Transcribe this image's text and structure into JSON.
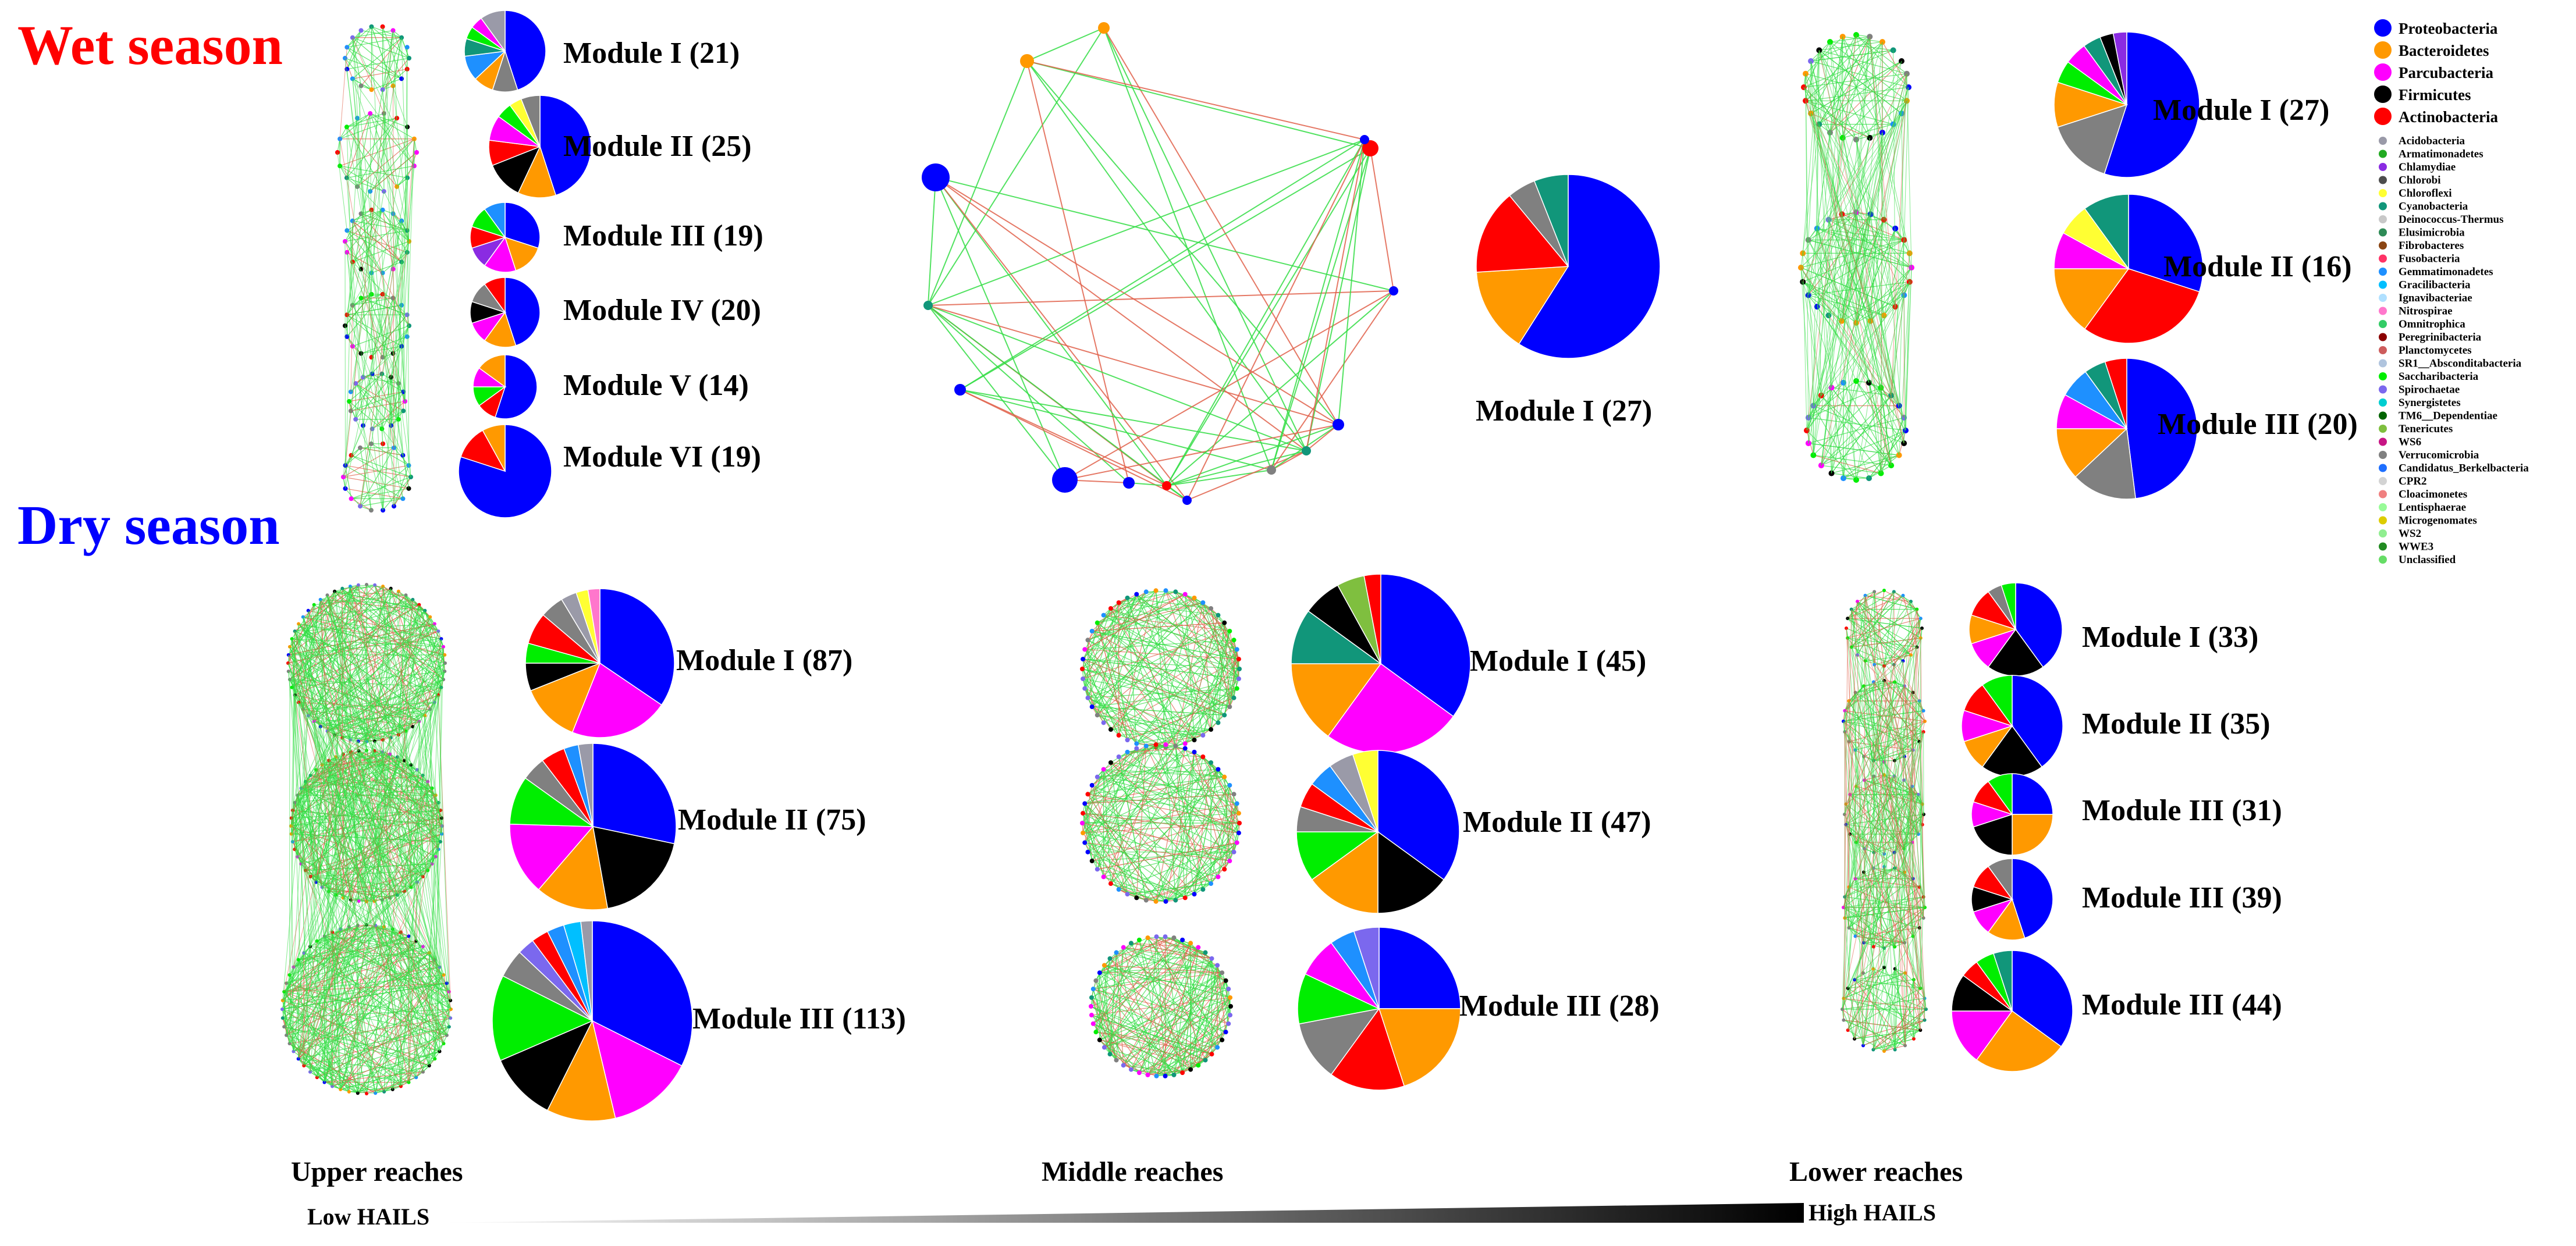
{
  "seasons": {
    "wet": {
      "label": "Wet season",
      "color": "#ff0000"
    },
    "dry": {
      "label": "Dry season",
      "color": "#0000ff"
    }
  },
  "reaches": [
    "Upper reaches",
    "Middle reaches",
    "Lower reaches"
  ],
  "hails": {
    "low": "Low HAILS",
    "high": "High HAILS"
  },
  "legend": [
    {
      "name": "Proteobacteria",
      "color": "#0000ff",
      "major": true
    },
    {
      "name": "Bacteroidetes",
      "color": "#ff9900",
      "major": true
    },
    {
      "name": "Parcubacteria",
      "color": "#ff00ff",
      "major": true
    },
    {
      "name": "Firmicutes",
      "color": "#000000",
      "major": true
    },
    {
      "name": "Actinobacteria",
      "color": "#ff0000",
      "major": true
    },
    {
      "name": "Acidobacteria",
      "color": "#9a9aa8"
    },
    {
      "name": "Armatimonadetes",
      "color": "#22aa22"
    },
    {
      "name": "Chlamydiae",
      "color": "#8a2be2"
    },
    {
      "name": "Chlorobi",
      "color": "#4d4d4d"
    },
    {
      "name": "Chloroflexi",
      "color": "#ffff33"
    },
    {
      "name": "Cyanobacteria",
      "color": "#11967a"
    },
    {
      "name": "Deinococcus-Thermus",
      "color": "#c8c8c8"
    },
    {
      "name": "Elusimicrobia",
      "color": "#2e8b57"
    },
    {
      "name": "Fibrobacteres",
      "color": "#8b4513"
    },
    {
      "name": "Fusobacteria",
      "color": "#ff3366"
    },
    {
      "name": "Gemmatimonadetes",
      "color": "#1e90ff"
    },
    {
      "name": "Gracilibacteria",
      "color": "#00bfff"
    },
    {
      "name": "Ignavibacteriae",
      "color": "#b0e0ff"
    },
    {
      "name": "Nitrospirae",
      "color": "#ff77cc"
    },
    {
      "name": "Omnitrophica",
      "color": "#33cc66"
    },
    {
      "name": "Peregrinibacteria",
      "color": "#8b0000"
    },
    {
      "name": "Planctomycetes",
      "color": "#cd5c5c"
    },
    {
      "name": "SR1__Absconditabacteria",
      "color": "#b0c4de"
    },
    {
      "name": "Saccharibacteria",
      "color": "#00ee00"
    },
    {
      "name": "Spirochaetae",
      "color": "#7b68ee"
    },
    {
      "name": "Synergistetes",
      "color": "#00ced1"
    },
    {
      "name": "TM6__Dependentiae",
      "color": "#006400"
    },
    {
      "name": "Tenericutes",
      "color": "#7fbf3f"
    },
    {
      "name": "WS6",
      "color": "#c71585"
    },
    {
      "name": "Verrucomicrobia",
      "color": "#808080"
    },
    {
      "name": "Candidatus_Berkelbacteria",
      "color": "#1e6fff"
    },
    {
      "name": "CPR2",
      "color": "#d3d3d3"
    },
    {
      "name": "Cloacimonetes",
      "color": "#f08080"
    },
    {
      "name": "Lentisphaerae",
      "color": "#98fb98"
    },
    {
      "name": "Microgenomates",
      "color": "#ddcc00"
    },
    {
      "name": "WS2",
      "color": "#90ee90"
    },
    {
      "name": "WWE3",
      "color": "#228b22"
    },
    {
      "name": "Unclassified",
      "color": "#66dd66"
    }
  ],
  "panels": [
    {
      "season": "wet",
      "reach": "Upper reaches",
      "modules": [
        {
          "label": "Module I (21)",
          "slices": [
            {
              "v": 45,
              "c": "#0000ff"
            },
            {
              "v": 10,
              "c": "#808080"
            },
            {
              "v": 8,
              "c": "#ff9900"
            },
            {
              "v": 10,
              "c": "#1e90ff"
            },
            {
              "v": 7,
              "c": "#11967a"
            },
            {
              "v": 5,
              "c": "#00ee00"
            },
            {
              "v": 5,
              "c": "#ff00ff"
            },
            {
              "v": 10,
              "c": "#9a9aa8"
            }
          ]
        },
        {
          "label": "Module II (25)",
          "slices": [
            {
              "v": 45,
              "c": "#0000ff"
            },
            {
              "v": 12,
              "c": "#ff9900"
            },
            {
              "v": 12,
              "c": "#000000"
            },
            {
              "v": 8,
              "c": "#ff0000"
            },
            {
              "v": 8,
              "c": "#ff00ff"
            },
            {
              "v": 5,
              "c": "#00ee00"
            },
            {
              "v": 4,
              "c": "#ffff33"
            },
            {
              "v": 6,
              "c": "#808080"
            }
          ]
        },
        {
          "label": "Module III (19)",
          "slices": [
            {
              "v": 30,
              "c": "#0000ff"
            },
            {
              "v": 15,
              "c": "#ff9900"
            },
            {
              "v": 15,
              "c": "#ff00ff"
            },
            {
              "v": 10,
              "c": "#8a2be2"
            },
            {
              "v": 10,
              "c": "#ff0000"
            },
            {
              "v": 10,
              "c": "#00ee00"
            },
            {
              "v": 10,
              "c": "#1e90ff"
            }
          ]
        },
        {
          "label": "Module IV (20)",
          "slices": [
            {
              "v": 45,
              "c": "#0000ff"
            },
            {
              "v": 15,
              "c": "#ff9900"
            },
            {
              "v": 10,
              "c": "#ff00ff"
            },
            {
              "v": 10,
              "c": "#000000"
            },
            {
              "v": 10,
              "c": "#808080"
            },
            {
              "v": 10,
              "c": "#ff0000"
            }
          ]
        },
        {
          "label": "Module V (14)",
          "slices": [
            {
              "v": 55,
              "c": "#0000ff"
            },
            {
              "v": 10,
              "c": "#ff0000"
            },
            {
              "v": 10,
              "c": "#00ee00"
            },
            {
              "v": 10,
              "c": "#ff00ff"
            },
            {
              "v": 15,
              "c": "#ff9900"
            }
          ]
        },
        {
          "label": "Module VI (19)",
          "slices": [
            {
              "v": 80,
              "c": "#0000ff"
            },
            {
              "v": 12,
              "c": "#ff0000"
            },
            {
              "v": 8,
              "c": "#ff9900"
            }
          ]
        }
      ]
    },
    {
      "season": "wet",
      "reach": "Middle reaches",
      "modules": [
        {
          "label": "Module I (27)",
          "slices": [
            {
              "v": 59,
              "c": "#0000ff"
            },
            {
              "v": 15,
              "c": "#ff9900"
            },
            {
              "v": 15,
              "c": "#ff0000"
            },
            {
              "v": 5,
              "c": "#808080"
            },
            {
              "v": 6,
              "c": "#11967a"
            }
          ]
        }
      ]
    },
    {
      "season": "wet",
      "reach": "Lower reaches",
      "modules": [
        {
          "label": "Module I (27)",
          "slices": [
            {
              "v": 55,
              "c": "#0000ff"
            },
            {
              "v": 15,
              "c": "#808080"
            },
            {
              "v": 10,
              "c": "#ff9900"
            },
            {
              "v": 5,
              "c": "#00ee00"
            },
            {
              "v": 5,
              "c": "#ff00ff"
            },
            {
              "v": 4,
              "c": "#11967a"
            },
            {
              "v": 3,
              "c": "#000000"
            },
            {
              "v": 3,
              "c": "#8a2be2"
            }
          ]
        },
        {
          "label": "Module II (16)",
          "slices": [
            {
              "v": 30,
              "c": "#0000ff"
            },
            {
              "v": 30,
              "c": "#ff0000"
            },
            {
              "v": 15,
              "c": "#ff9900"
            },
            {
              "v": 8,
              "c": "#ff00ff"
            },
            {
              "v": 7,
              "c": "#ffff33"
            },
            {
              "v": 10,
              "c": "#11967a"
            }
          ]
        },
        {
          "label": "Module III (20)",
          "slices": [
            {
              "v": 48,
              "c": "#0000ff"
            },
            {
              "v": 15,
              "c": "#808080"
            },
            {
              "v": 12,
              "c": "#ff9900"
            },
            {
              "v": 8,
              "c": "#ff00ff"
            },
            {
              "v": 7,
              "c": "#1e90ff"
            },
            {
              "v": 5,
              "c": "#11967a"
            },
            {
              "v": 5,
              "c": "#ff0000"
            }
          ]
        }
      ]
    },
    {
      "season": "dry",
      "reach": "Upper reaches",
      "modules": [
        {
          "label": "Module I (87)",
          "slices": [
            {
              "v": 40,
              "c": "#0000ff"
            },
            {
              "v": 25,
              "c": "#ff00ff"
            },
            {
              "v": 15,
              "c": "#ff9900"
            },
            {
              "v": 7,
              "c": "#000000"
            },
            {
              "v": 5,
              "c": "#00ee00"
            },
            {
              "v": 8,
              "c": "#ff0000"
            },
            {
              "v": 6,
              "c": "#808080"
            },
            {
              "v": 4,
              "c": "#9a9aa8"
            },
            {
              "v": 3,
              "c": "#ffff33"
            },
            {
              "v": 3,
              "c": "#ff77cc"
            }
          ]
        },
        {
          "label": "Module II (75)",
          "slices": [
            {
              "v": 30,
              "c": "#0000ff"
            },
            {
              "v": 20,
              "c": "#000000"
            },
            {
              "v": 15,
              "c": "#ff9900"
            },
            {
              "v": 15,
              "c": "#ff00ff"
            },
            {
              "v": 10,
              "c": "#00ee00"
            },
            {
              "v": 5,
              "c": "#808080"
            },
            {
              "v": 5,
              "c": "#ff0000"
            },
            {
              "v": 3,
              "c": "#1e90ff"
            },
            {
              "v": 3,
              "c": "#9a9aa8"
            }
          ]
        },
        {
          "label": "Module III (113)",
          "slices": [
            {
              "v": 35,
              "c": "#0000ff"
            },
            {
              "v": 15,
              "c": "#ff00ff"
            },
            {
              "v": 12,
              "c": "#ff9900"
            },
            {
              "v": 12,
              "c": "#000000"
            },
            {
              "v": 15,
              "c": "#00ee00"
            },
            {
              "v": 5,
              "c": "#808080"
            },
            {
              "v": 3,
              "c": "#7b68ee"
            },
            {
              "v": 3,
              "c": "#ff0000"
            },
            {
              "v": 3,
              "c": "#1e90ff"
            },
            {
              "v": 3,
              "c": "#00bfff"
            },
            {
              "v": 2,
              "c": "#9a9aa8"
            }
          ]
        }
      ]
    },
    {
      "season": "dry",
      "reach": "Middle reaches",
      "modules": [
        {
          "label": "Module I (45)",
          "slices": [
            {
              "v": 35,
              "c": "#0000ff"
            },
            {
              "v": 25,
              "c": "#ff00ff"
            },
            {
              "v": 15,
              "c": "#ff9900"
            },
            {
              "v": 10,
              "c": "#11967a"
            },
            {
              "v": 7,
              "c": "#000000"
            },
            {
              "v": 5,
              "c": "#7fbf3f"
            },
            {
              "v": 3,
              "c": "#ff0000"
            }
          ]
        },
        {
          "label": "Module II (47)",
          "slices": [
            {
              "v": 35,
              "c": "#0000ff"
            },
            {
              "v": 15,
              "c": "#000000"
            },
            {
              "v": 15,
              "c": "#ff9900"
            },
            {
              "v": 10,
              "c": "#00ee00"
            },
            {
              "v": 5,
              "c": "#808080"
            },
            {
              "v": 5,
              "c": "#ff0000"
            },
            {
              "v": 5,
              "c": "#1e90ff"
            },
            {
              "v": 5,
              "c": "#9a9aa8"
            },
            {
              "v": 5,
              "c": "#ffff33"
            }
          ]
        },
        {
          "label": "Module III (28)",
          "slices": [
            {
              "v": 25,
              "c": "#0000ff"
            },
            {
              "v": 20,
              "c": "#ff9900"
            },
            {
              "v": 15,
              "c": "#ff0000"
            },
            {
              "v": 12,
              "c": "#808080"
            },
            {
              "v": 10,
              "c": "#00ee00"
            },
            {
              "v": 8,
              "c": "#ff00ff"
            },
            {
              "v": 5,
              "c": "#1e90ff"
            },
            {
              "v": 5,
              "c": "#7b68ee"
            }
          ]
        }
      ]
    },
    {
      "season": "dry",
      "reach": "Lower reaches",
      "modules": [
        {
          "label": "Module I (33)",
          "slices": [
            {
              "v": 40,
              "c": "#0000ff"
            },
            {
              "v": 20,
              "c": "#000000"
            },
            {
              "v": 10,
              "c": "#ff00ff"
            },
            {
              "v": 10,
              "c": "#ff9900"
            },
            {
              "v": 10,
              "c": "#ff0000"
            },
            {
              "v": 5,
              "c": "#808080"
            },
            {
              "v": 5,
              "c": "#00ee00"
            }
          ]
        },
        {
          "label": "Module II (35)",
          "slices": [
            {
              "v": 40,
              "c": "#0000ff"
            },
            {
              "v": 20,
              "c": "#000000"
            },
            {
              "v": 10,
              "c": "#ff9900"
            },
            {
              "v": 10,
              "c": "#ff00ff"
            },
            {
              "v": 10,
              "c": "#ff0000"
            },
            {
              "v": 10,
              "c": "#00ee00"
            }
          ]
        },
        {
          "label": "Module III (31)",
          "slices": [
            {
              "v": 25,
              "c": "#0000ff"
            },
            {
              "v": 25,
              "c": "#ff9900"
            },
            {
              "v": 20,
              "c": "#000000"
            },
            {
              "v": 10,
              "c": "#ff00ff"
            },
            {
              "v": 10,
              "c": "#ff0000"
            },
            {
              "v": 10,
              "c": "#00ee00"
            }
          ]
        },
        {
          "label": "Module III (39)",
          "slices": [
            {
              "v": 45,
              "c": "#0000ff"
            },
            {
              "v": 15,
              "c": "#ff9900"
            },
            {
              "v": 10,
              "c": "#ff00ff"
            },
            {
              "v": 10,
              "c": "#000000"
            },
            {
              "v": 10,
              "c": "#ff0000"
            },
            {
              "v": 10,
              "c": "#808080"
            }
          ]
        },
        {
          "label": "Module III (44)",
          "slices": [
            {
              "v": 35,
              "c": "#0000ff"
            },
            {
              "v": 25,
              "c": "#ff9900"
            },
            {
              "v": 15,
              "c": "#ff00ff"
            },
            {
              "v": 10,
              "c": "#000000"
            },
            {
              "v": 5,
              "c": "#ff0000"
            },
            {
              "v": 5,
              "c": "#00ee00"
            },
            {
              "v": 5,
              "c": "#11967a"
            }
          ]
        }
      ]
    }
  ]
}
